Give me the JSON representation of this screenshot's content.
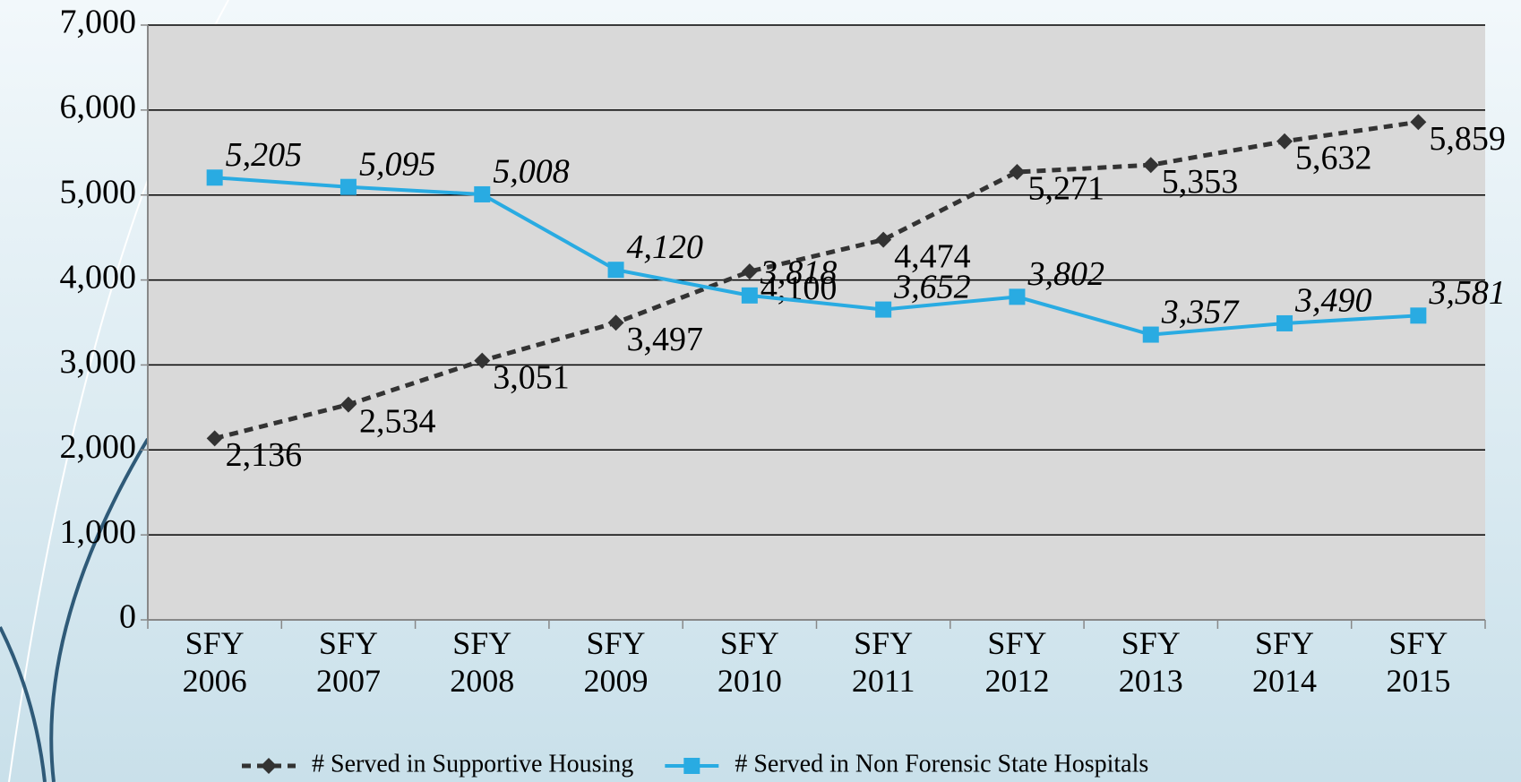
{
  "chart_data": {
    "type": "line",
    "categories": [
      "SFY 2006",
      "SFY 2007",
      "SFY 2008",
      "SFY 2009",
      "SFY 2010",
      "SFY 2011",
      "SFY 2012",
      "SFY 2013",
      "SFY 2014",
      "SFY 2015"
    ],
    "series": [
      {
        "name": "# Served in Supportive Housing",
        "color": "#333333",
        "values": [
          2136,
          2534,
          3051,
          3497,
          4100,
          4474,
          5271,
          5353,
          5632,
          5859
        ],
        "value_labels": [
          "2,136",
          "2,534",
          "3,051",
          "3,497",
          "4,100",
          "4,474",
          "5,271",
          "5,353",
          "5,632",
          "5,859"
        ]
      },
      {
        "name": "# Served in Non Forensic State Hospitals",
        "color": "#29abe2",
        "values": [
          5205,
          5095,
          5008,
          4120,
          3818,
          3652,
          3802,
          3357,
          3490,
          3581
        ],
        "value_labels": [
          "5,205",
          "5,095",
          "5,008",
          "4,120",
          "3,818",
          "3,652",
          "3,802",
          "3,357",
          "3,490",
          "3,581"
        ]
      }
    ],
    "ylim": [
      0,
      7000
    ],
    "yticks": [
      0,
      {
        "value": 1000,
        "label": "1,000"
      },
      {
        "value": 2000,
        "label": "2,000"
      },
      {
        "value": 3000,
        "label": "3,000"
      },
      {
        "value": 4000,
        "label": "4,000"
      },
      {
        "value": 5000,
        "label": "5,000"
      },
      {
        "value": 6000,
        "label": "6,000"
      },
      {
        "value": 7000,
        "label": "7,000"
      }
    ],
    "grid": true,
    "legend": "bottom"
  }
}
